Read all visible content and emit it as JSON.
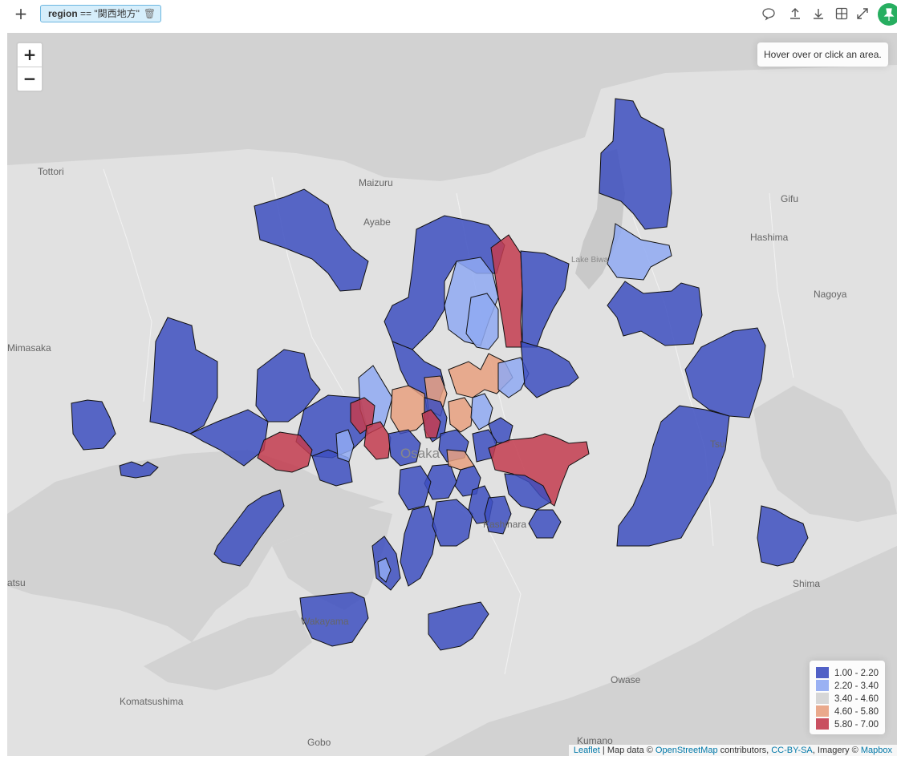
{
  "toolbar": {
    "add_label": "+",
    "filter": {
      "key": "region",
      "op": " == ",
      "value": "\"関西地方\""
    }
  },
  "map": {
    "zoom_in_label": "+",
    "zoom_out_label": "−",
    "info_text": "Hover over or click an area.",
    "places": [
      "Tottori",
      "Maizuru",
      "Ayabe",
      "Gifu",
      "Hashima",
      "Lake Biwa",
      "Nagoya",
      "Mimasaka",
      "Tsu",
      "Osaka",
      "Kashihara",
      "Shima",
      "atsu",
      "Wakayama",
      "Owase",
      "Komatsushima",
      "Gobo",
      "Kumano"
    ],
    "legend": [
      {
        "label": "1.00 - 2.20",
        "color": "#3d4fc0"
      },
      {
        "label": "2.20 - 3.40",
        "color": "#8fa9f2"
      },
      {
        "label": "3.40 - 4.60",
        "color": "#d3d3d3"
      },
      {
        "label": "4.60 - 5.80",
        "color": "#e8a07f"
      },
      {
        "label": "5.80 - 7.00",
        "color": "#c33c4f"
      }
    ],
    "attribution": {
      "leaflet": "Leaflet",
      "sep1": " | Map data © ",
      "osm": "OpenStreetMap",
      "sep2": " contributors, ",
      "license": "CC-BY-SA",
      "sep3": ", Imagery © ",
      "provider": "Mapbox"
    }
  }
}
